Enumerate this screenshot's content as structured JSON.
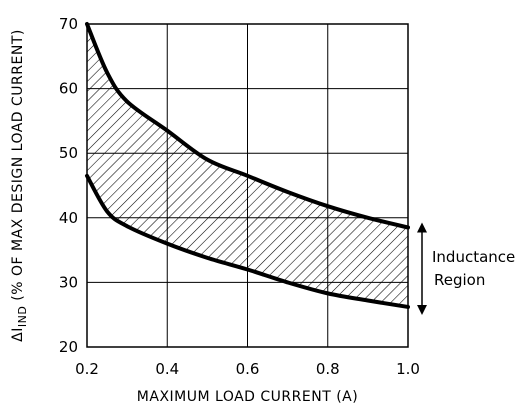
{
  "chart_data": {
    "type": "area",
    "title": "",
    "xlabel": "MAXIMUM LOAD CURRENT (A)",
    "ylabel": {
      "prefix": "ΔI",
      "subscript": "IND",
      "suffix": " (% OF MAX DESIGN LOAD CURRENT)"
    },
    "xlim": [
      0.2,
      1.0
    ],
    "ylim": [
      20,
      70
    ],
    "xticks": [
      "0.2",
      "0.4",
      "0.6",
      "0.8",
      "1.0"
    ],
    "yticks": [
      "20",
      "30",
      "40",
      "50",
      "60",
      "70"
    ],
    "grid": true,
    "series": [
      {
        "x": [
          0.2,
          0.25,
          0.3,
          0.4,
          0.5,
          0.6,
          0.7,
          0.8,
          0.9,
          1.0
        ],
        "y": [
          70,
          62.5,
          58,
          53.5,
          49,
          46.5,
          44,
          41.8,
          40,
          38.5
        ]
      },
      {
        "x": [
          0.2,
          0.25,
          0.3,
          0.4,
          0.5,
          0.6,
          0.7,
          0.8,
          0.9,
          1.0
        ],
        "y": [
          46.5,
          41,
          38.7,
          36,
          33.8,
          32,
          30,
          28.3,
          27.2,
          26.2
        ]
      }
    ],
    "band_fill": "hatched",
    "annotation": {
      "lines": [
        "Inductance",
        "Region"
      ],
      "arrow": "double-headed vertical"
    }
  }
}
